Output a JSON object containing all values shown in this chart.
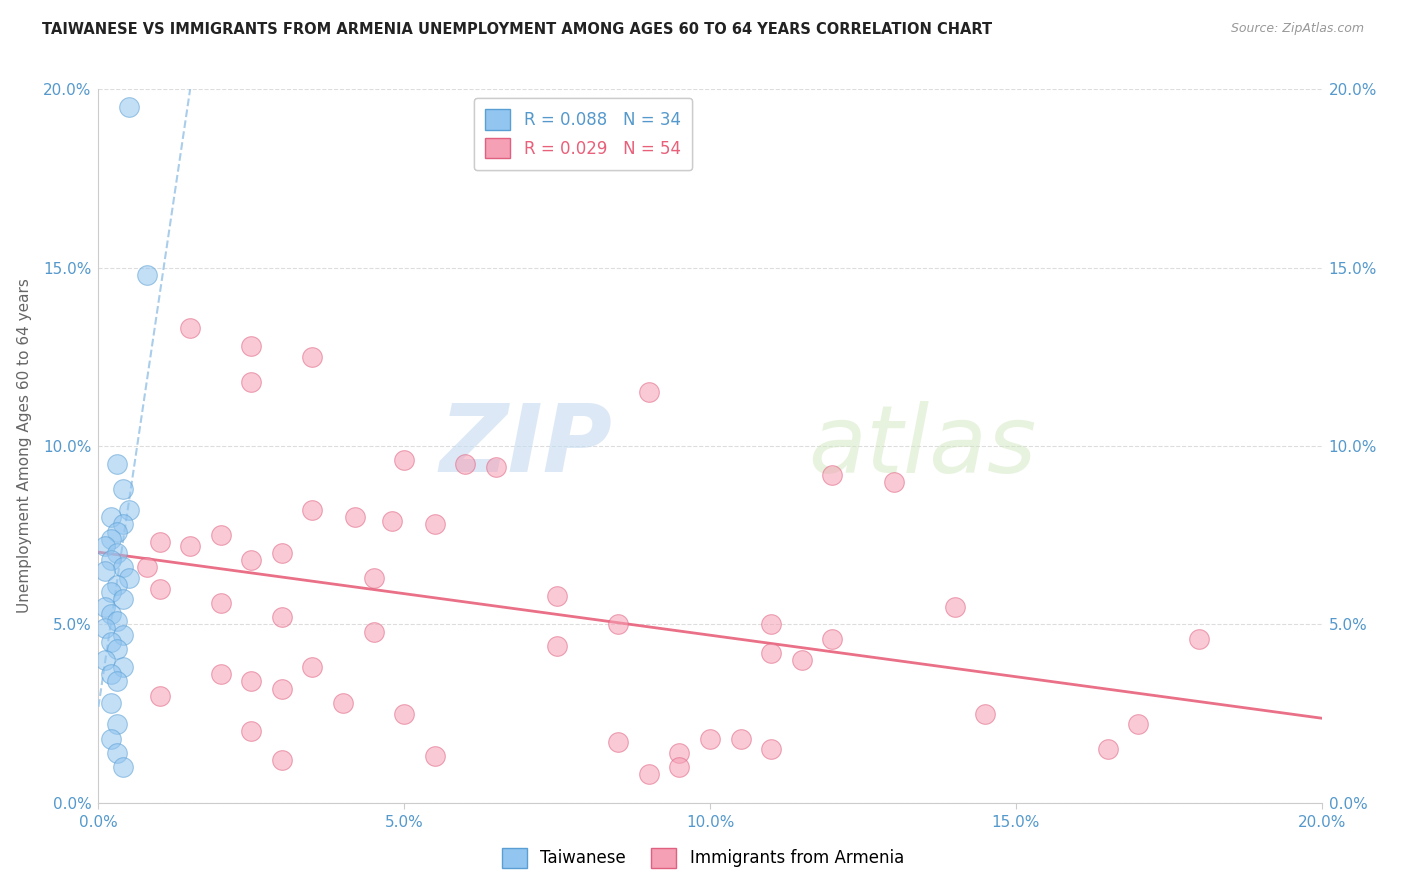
{
  "title": "TAIWANESE VS IMMIGRANTS FROM ARMENIA UNEMPLOYMENT AMONG AGES 60 TO 64 YEARS CORRELATION CHART",
  "source": "Source: ZipAtlas.com",
  "ylabel": "Unemployment Among Ages 60 to 64 years",
  "xlim": [
    0.0,
    0.2
  ],
  "ylim": [
    0.0,
    0.2
  ],
  "xticks": [
    0.0,
    0.05,
    0.1,
    0.15,
    0.2
  ],
  "yticks": [
    0.0,
    0.05,
    0.1,
    0.15,
    0.2
  ],
  "xticklabels": [
    "0.0%",
    "5.0%",
    "10.0%",
    "15.0%",
    "20.0%"
  ],
  "yticklabels": [
    "0.0%",
    "5.0%",
    "10.0%",
    "15.0%",
    "20.0%"
  ],
  "watermark_zip": "ZIP",
  "watermark_atlas": "atlas",
  "taiwanese_color": "#92c5f0",
  "taiwanese_edge": "#5a9fd4",
  "armenian_color": "#f5a0b5",
  "armenian_edge": "#e06080",
  "taiwanese_trendline_color": "#a0c8e8",
  "armenian_trendline_color": "#e8607a",
  "tick_color": "#5599cc",
  "ylabel_color": "#666666",
  "title_color": "#222222",
  "source_color": "#999999",
  "grid_color": "#dddddd",
  "background_color": "#ffffff",
  "taiwanese_scatter": [
    [
      0.005,
      0.195
    ],
    [
      0.008,
      0.148
    ],
    [
      0.003,
      0.095
    ],
    [
      0.004,
      0.088
    ],
    [
      0.005,
      0.082
    ],
    [
      0.002,
      0.08
    ],
    [
      0.004,
      0.078
    ],
    [
      0.003,
      0.076
    ],
    [
      0.002,
      0.074
    ],
    [
      0.001,
      0.072
    ],
    [
      0.003,
      0.07
    ],
    [
      0.002,
      0.068
    ],
    [
      0.004,
      0.066
    ],
    [
      0.001,
      0.065
    ],
    [
      0.005,
      0.063
    ],
    [
      0.003,
      0.061
    ],
    [
      0.002,
      0.059
    ],
    [
      0.004,
      0.057
    ],
    [
      0.001,
      0.055
    ],
    [
      0.002,
      0.053
    ],
    [
      0.003,
      0.051
    ],
    [
      0.001,
      0.049
    ],
    [
      0.004,
      0.047
    ],
    [
      0.002,
      0.045
    ],
    [
      0.003,
      0.043
    ],
    [
      0.001,
      0.04
    ],
    [
      0.004,
      0.038
    ],
    [
      0.002,
      0.036
    ],
    [
      0.003,
      0.034
    ],
    [
      0.002,
      0.028
    ],
    [
      0.003,
      0.022
    ],
    [
      0.002,
      0.018
    ],
    [
      0.003,
      0.014
    ],
    [
      0.004,
      0.01
    ]
  ],
  "armenian_scatter": [
    [
      0.015,
      0.133
    ],
    [
      0.025,
      0.128
    ],
    [
      0.035,
      0.125
    ],
    [
      0.025,
      0.118
    ],
    [
      0.09,
      0.115
    ],
    [
      0.05,
      0.096
    ],
    [
      0.06,
      0.095
    ],
    [
      0.065,
      0.094
    ],
    [
      0.12,
      0.092
    ],
    [
      0.13,
      0.09
    ],
    [
      0.035,
      0.082
    ],
    [
      0.042,
      0.08
    ],
    [
      0.048,
      0.079
    ],
    [
      0.055,
      0.078
    ],
    [
      0.02,
      0.075
    ],
    [
      0.01,
      0.073
    ],
    [
      0.015,
      0.072
    ],
    [
      0.03,
      0.07
    ],
    [
      0.025,
      0.068
    ],
    [
      0.008,
      0.066
    ],
    [
      0.045,
      0.063
    ],
    [
      0.01,
      0.06
    ],
    [
      0.075,
      0.058
    ],
    [
      0.02,
      0.056
    ],
    [
      0.14,
      0.055
    ],
    [
      0.03,
      0.052
    ],
    [
      0.085,
      0.05
    ],
    [
      0.11,
      0.05
    ],
    [
      0.045,
      0.048
    ],
    [
      0.12,
      0.046
    ],
    [
      0.18,
      0.046
    ],
    [
      0.075,
      0.044
    ],
    [
      0.11,
      0.042
    ],
    [
      0.115,
      0.04
    ],
    [
      0.035,
      0.038
    ],
    [
      0.02,
      0.036
    ],
    [
      0.025,
      0.034
    ],
    [
      0.03,
      0.032
    ],
    [
      0.01,
      0.03
    ],
    [
      0.04,
      0.028
    ],
    [
      0.05,
      0.025
    ],
    [
      0.145,
      0.025
    ],
    [
      0.17,
      0.022
    ],
    [
      0.025,
      0.02
    ],
    [
      0.1,
      0.018
    ],
    [
      0.105,
      0.018
    ],
    [
      0.085,
      0.017
    ],
    [
      0.165,
      0.015
    ],
    [
      0.11,
      0.015
    ],
    [
      0.095,
      0.014
    ],
    [
      0.055,
      0.013
    ],
    [
      0.03,
      0.012
    ],
    [
      0.095,
      0.01
    ],
    [
      0.09,
      0.008
    ]
  ],
  "legend1_label1": "R = 0.088   N = 34",
  "legend1_label2": "R = 0.029   N = 54",
  "legend2_label1": "Taiwanese",
  "legend2_label2": "Immigrants from Armenia"
}
